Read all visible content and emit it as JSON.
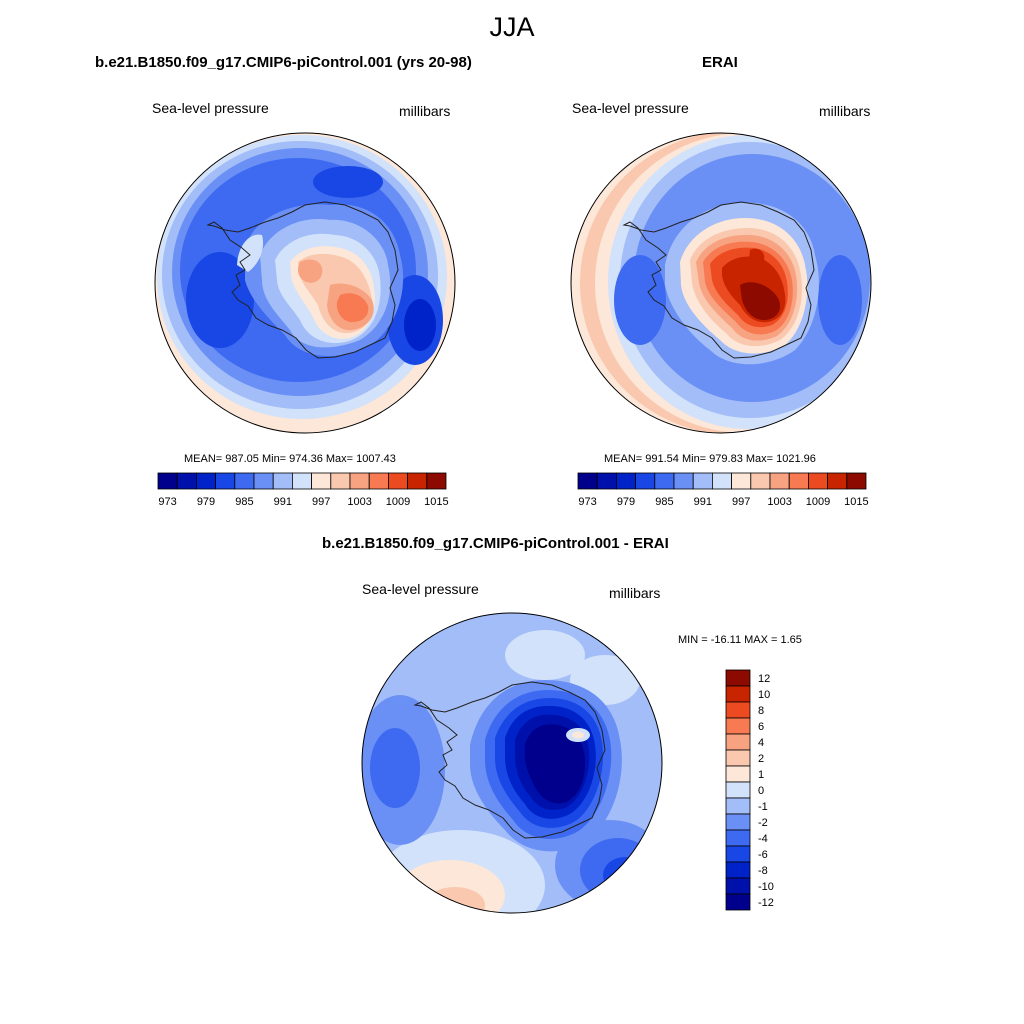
{
  "figure": {
    "title": "JJA"
  },
  "colors": {
    "levels": [
      "#00008c",
      "#0010ab",
      "#0023c9",
      "#1847e6",
      "#3d6af0",
      "#6b90f5",
      "#a2bdf8",
      "#d2e2fb",
      "#fce7d8",
      "#f9c8ae",
      "#f7a382",
      "#f77a52",
      "#ec4b21",
      "#c82400",
      "#8c0a00"
    ],
    "contour_line": "#333333"
  },
  "chart_data": [
    {
      "type": "heatmap",
      "name": "model",
      "title": "b.e21.B1850.f09_g17.CMIP6-piControl.001 (yrs 20-98)",
      "variable": "Sea-level pressure",
      "units": "millibars",
      "stats": {
        "mean": 987.05,
        "min": 974.36,
        "max": 1007.43
      },
      "stats_text": "MEAN= 987.05  Min= 974.36  Max= 1007.43",
      "colorbar": {
        "orientation": "horizontal",
        "contour_levels": [
          973,
          976,
          979,
          982,
          985,
          988,
          991,
          994,
          997,
          1000,
          1003,
          1006,
          1009,
          1012,
          1015
        ],
        "tick_labels": [
          "973",
          "979",
          "985",
          "991",
          "997",
          "1003",
          "1009",
          "1015"
        ]
      }
    },
    {
      "type": "heatmap",
      "name": "obs",
      "title": "ERAI",
      "variable": "Sea-level pressure",
      "units": "millibars",
      "stats": {
        "mean": 991.54,
        "min": 979.83,
        "max": 1021.96
      },
      "stats_text": "MEAN= 991.54  Min= 979.83  Max= 1021.96",
      "colorbar": {
        "orientation": "horizontal",
        "contour_levels": [
          973,
          976,
          979,
          982,
          985,
          988,
          991,
          994,
          997,
          1000,
          1003,
          1006,
          1009,
          1012,
          1015
        ],
        "tick_labels": [
          "973",
          "979",
          "985",
          "991",
          "997",
          "1003",
          "1009",
          "1015"
        ]
      }
    },
    {
      "type": "heatmap",
      "name": "diff",
      "title": "b.e21.B1850.f09_g17.CMIP6-piControl.001 - ERAI",
      "variable": "Sea-level pressure",
      "units": "millibars",
      "stats": {
        "min": -16.11,
        "max": 1.65
      },
      "stats_text": "MIN = -16.11 MAX =   1.65",
      "colorbar": {
        "orientation": "vertical",
        "contour_levels": [
          12,
          10,
          8,
          6,
          4,
          2,
          1,
          0,
          -1,
          -2,
          -4,
          -6,
          -8,
          -10,
          -12
        ],
        "tick_labels": [
          "12",
          "10",
          "8",
          "6",
          "4",
          "2",
          "1",
          "0",
          "-1",
          "-2",
          "-4",
          "-6",
          "-8",
          "-10",
          "-12"
        ]
      }
    }
  ]
}
